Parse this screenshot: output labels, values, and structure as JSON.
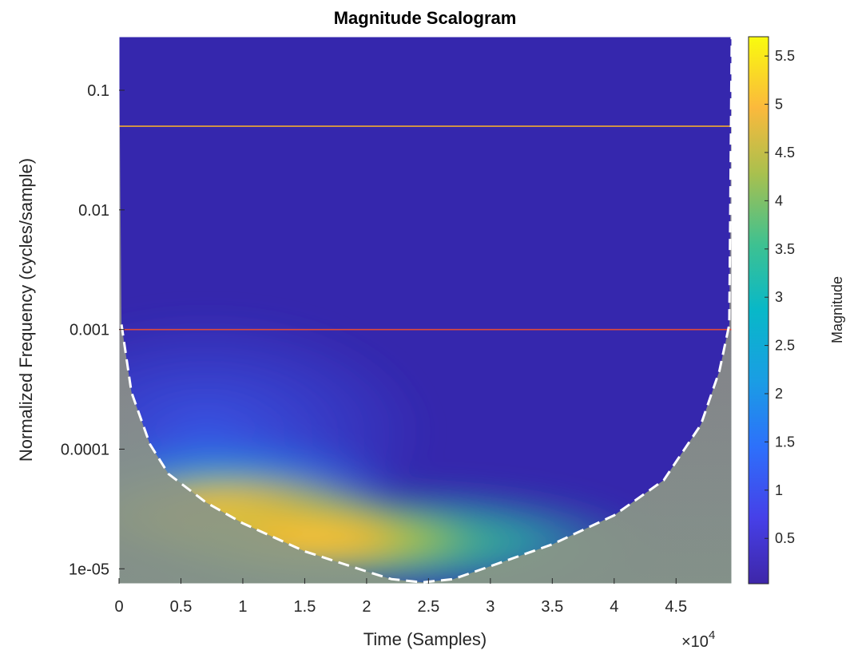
{
  "chart_data": {
    "type": "heatmap",
    "title": "Magnitude Scalogram",
    "xlabel": "Time (Samples)",
    "ylabel": "Normalized Frequency  (cycles/sample)",
    "x_exponent_label": "×10",
    "x_exponent_power": "4",
    "x_multiplier": 10000,
    "xlim": [
      0,
      4.95
    ],
    "ylim": [
      7.5e-06,
      0.28
    ],
    "y_scale": "log",
    "x_ticks": [
      0,
      0.5,
      1,
      1.5,
      2,
      2.5,
      3,
      3.5,
      4,
      4.5
    ],
    "x_tick_labels": [
      "0",
      "0.5",
      "1",
      "1.5",
      "2",
      "2.5",
      "3",
      "3.5",
      "4",
      "4.5"
    ],
    "y_ticks": [
      1e-05,
      0.0001,
      0.001,
      0.01,
      0.1
    ],
    "y_tick_labels": [
      "1e-05",
      "0.0001",
      "0.001",
      "0.01",
      "0.1"
    ],
    "colorbar": {
      "label": "Magnitude",
      "range": [
        0.03,
        5.7
      ],
      "ticks": [
        0.5,
        1,
        1.5,
        2,
        2.5,
        3,
        3.5,
        4,
        4.5,
        5,
        5.5
      ],
      "tick_labels": [
        "0.5",
        "1",
        "1.5",
        "2",
        "2.5",
        "3",
        "3.5",
        "4",
        "4.5",
        "5",
        "5.5"
      ]
    },
    "horizontal_lines": [
      {
        "frequency": 0.05,
        "color": "#f0a830"
      },
      {
        "frequency": 0.001,
        "color": "#e04a3a"
      }
    ],
    "features": [
      {
        "x": 0.9,
        "frequency": 2.8e-05,
        "magnitude": 5.1
      },
      {
        "x": 1.6,
        "frequency": 1.8e-05,
        "magnitude": 4.2
      },
      {
        "x": 2.6,
        "frequency": 1.2e-05,
        "magnitude": 3.0
      }
    ],
    "cone_of_influence": [
      {
        "x": 0.02,
        "frequency": 0.0011
      },
      {
        "x": 0.1,
        "frequency": 0.0003
      },
      {
        "x": 0.25,
        "frequency": 0.00011
      },
      {
        "x": 0.4,
        "frequency": 6.2e-05
      },
      {
        "x": 0.7,
        "frequency": 3.6e-05
      },
      {
        "x": 1.0,
        "frequency": 2.4e-05
      },
      {
        "x": 1.5,
        "frequency": 1.4e-05
      },
      {
        "x": 2.0,
        "frequency": 9.5e-06
      },
      {
        "x": 2.2,
        "frequency": 8.2e-06
      },
      {
        "x": 2.45,
        "frequency": 7.7e-06
      },
      {
        "x": 2.7,
        "frequency": 8.2e-06
      },
      {
        "x": 3.0,
        "frequency": 1.05e-05
      },
      {
        "x": 3.5,
        "frequency": 1.6e-05
      },
      {
        "x": 4.0,
        "frequency": 2.8e-05
      },
      {
        "x": 4.4,
        "frequency": 5.5e-05
      },
      {
        "x": 4.7,
        "frequency": 0.00016
      },
      {
        "x": 4.85,
        "frequency": 0.00045
      },
      {
        "x": 4.93,
        "frequency": 0.0011
      }
    ]
  }
}
